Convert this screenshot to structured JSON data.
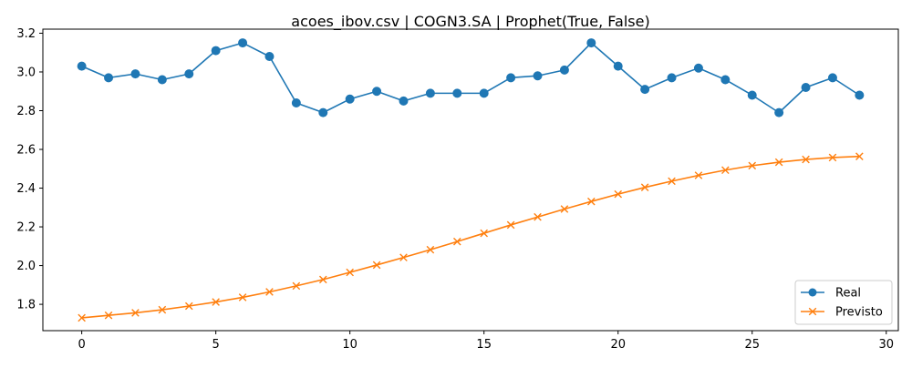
{
  "chart_data": {
    "type": "line",
    "title": "acoes_ibov.csv | COGN3.SA | Prophet(True, False)",
    "xlabel": "",
    "ylabel": "",
    "xlim": [
      -1.45,
      30.45
    ],
    "ylim": [
      1.664,
      3.221
    ],
    "xticks": [
      0,
      5,
      10,
      15,
      20,
      25,
      30
    ],
    "yticks": [
      1.8,
      2.0,
      2.2,
      2.4,
      2.6,
      2.8,
      3.0,
      3.2
    ],
    "ytick_labels": [
      "1.8",
      "2.0",
      "2.2",
      "2.4",
      "2.6",
      "2.8",
      "3.0",
      "3.2"
    ],
    "grid": false,
    "legend_position": "lower-right",
    "x": [
      0,
      1,
      2,
      3,
      4,
      5,
      6,
      7,
      8,
      9,
      10,
      11,
      12,
      13,
      14,
      15,
      16,
      17,
      18,
      19,
      20,
      21,
      22,
      23,
      24,
      25,
      26,
      27,
      28,
      29
    ],
    "series": [
      {
        "name": "Real",
        "color": "#1f77b4",
        "marker": "circle",
        "values": [
          3.03,
          2.97,
          2.99,
          2.96,
          2.99,
          3.11,
          3.15,
          3.08,
          2.84,
          2.79,
          2.86,
          2.9,
          2.85,
          2.89,
          2.89,
          2.89,
          2.97,
          2.98,
          3.01,
          3.15,
          3.03,
          2.91,
          2.97,
          3.02,
          2.96,
          2.88,
          2.79,
          2.92,
          2.97,
          2.88
        ]
      },
      {
        "name": "Previsto",
        "color": "#ff7f0e",
        "marker": "x",
        "values": [
          1.73,
          1.743,
          1.756,
          1.772,
          1.791,
          1.812,
          1.836,
          1.864,
          1.895,
          1.928,
          1.965,
          2.003,
          2.042,
          2.082,
          2.124,
          2.167,
          2.21,
          2.251,
          2.292,
          2.331,
          2.369,
          2.404,
          2.436,
          2.466,
          2.493,
          2.516,
          2.534,
          2.548,
          2.558,
          2.564
        ]
      }
    ]
  }
}
